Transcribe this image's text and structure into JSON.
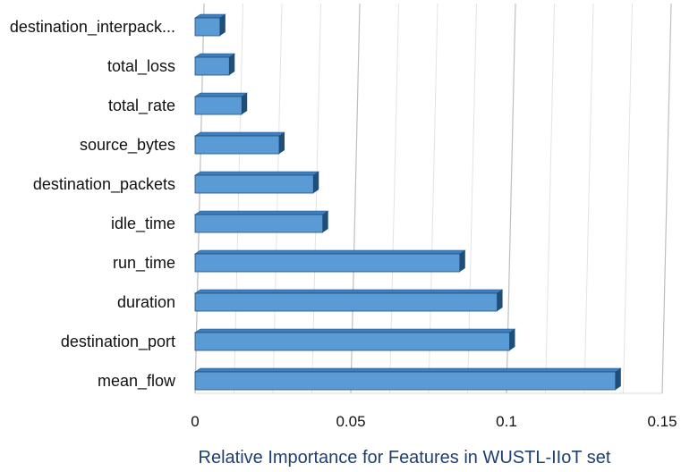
{
  "chart_data": {
    "type": "bar",
    "orientation": "horizontal",
    "style": "3d-bars",
    "categories": [
      "mean_flow",
      "destination_port",
      "duration",
      "run_time",
      "idle_time",
      "destination_packets",
      "source_bytes",
      "total_rate",
      "total_loss",
      "destination_interpack..."
    ],
    "values": [
      0.135,
      0.101,
      0.097,
      0.085,
      0.041,
      0.038,
      0.027,
      0.015,
      0.011,
      0.008
    ],
    "xlabel": "Relative Importance for Features in WUSTL-IIoT set",
    "ylabel": "",
    "xlim": [
      0,
      0.15
    ],
    "xticks": [
      "0",
      "0.05",
      "0.1",
      "0.15"
    ],
    "grid": true,
    "legend": "none",
    "colors": {
      "bar_face": "#5b9bd5",
      "bar_top": "#3f7fbf",
      "bar_side": "#1f4e79",
      "grid_major": "#bfbfbf",
      "grid_minor": "#e3e3e3",
      "title": "#1f3f6e"
    }
  }
}
